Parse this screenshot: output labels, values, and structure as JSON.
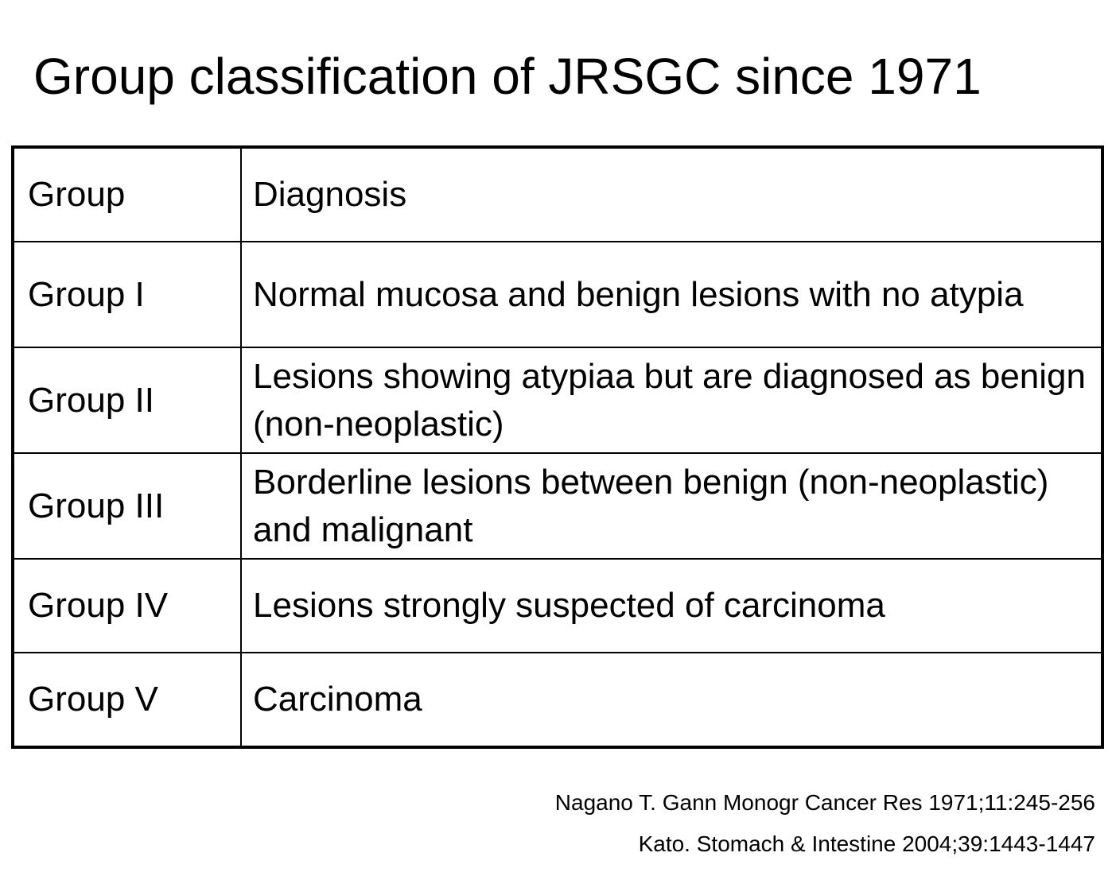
{
  "title": "Group classification of JRSGC since 1971",
  "table": {
    "header": {
      "group": "Group",
      "diagnosis": "Diagnosis"
    },
    "rows": [
      {
        "group": "Group I",
        "diagnosis": "Normal mucosa and benign lesions with no atypia"
      },
      {
        "group": "Group II",
        "diagnosis": "Lesions showing atypiaa but are diagnosed as benign (non-neoplastic)"
      },
      {
        "group": "Group III",
        "diagnosis": "Borderline lesions between benign (non-neoplastic) and malignant"
      },
      {
        "group": "Group IV",
        "diagnosis": "Lesions strongly suspected of carcinoma"
      },
      {
        "group": "Group V",
        "diagnosis": "Carcinoma"
      }
    ]
  },
  "citations": [
    "Nagano T. Gann Monogr Cancer Res 1971;11:245-256",
    "Kato. Stomach & Intestine 2004;39:1443-1447"
  ]
}
